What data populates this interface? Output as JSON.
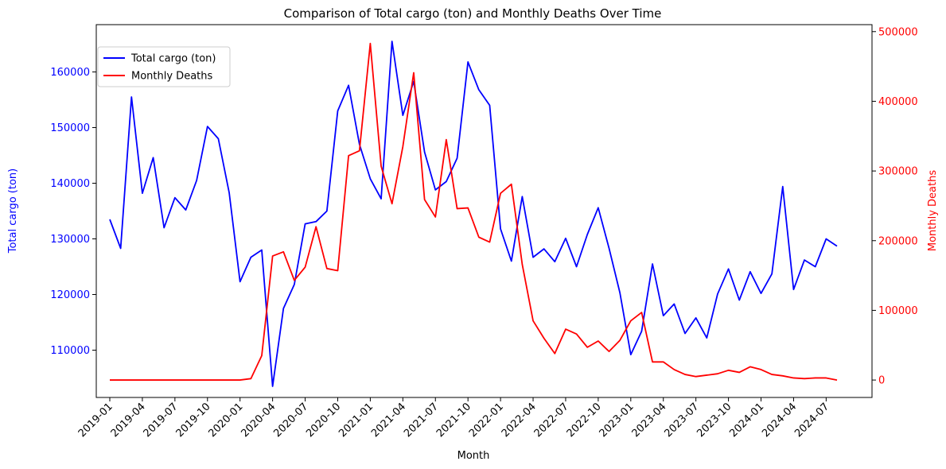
{
  "chart_data": {
    "type": "line",
    "title": "Comparison of Total cargo (ton) and Monthly Deaths Over Time",
    "xlabel": "Month",
    "ylabel_left": "Total cargo (ton)",
    "ylabel_right": "Monthly Deaths",
    "left_axis_color": "#0000ff",
    "right_axis_color": "#ff0000",
    "x_tick_labels": [
      "2019-01",
      "2019-04",
      "2019-07",
      "2019-10",
      "2020-01",
      "2020-04",
      "2020-07",
      "2020-10",
      "2021-01",
      "2021-04",
      "2021-07",
      "2021-10",
      "2022-01",
      "2022-04",
      "2022-07",
      "2022-10",
      "2023-01",
      "2023-04",
      "2023-07",
      "2023-10",
      "2024-01",
      "2024-04",
      "2024-07"
    ],
    "x": [
      "2019-01",
      "2019-02",
      "2019-03",
      "2019-04",
      "2019-05",
      "2019-06",
      "2019-07",
      "2019-08",
      "2019-09",
      "2019-10",
      "2019-11",
      "2019-12",
      "2020-01",
      "2020-02",
      "2020-03",
      "2020-04",
      "2020-05",
      "2020-06",
      "2020-07",
      "2020-08",
      "2020-09",
      "2020-10",
      "2020-11",
      "2020-12",
      "2021-01",
      "2021-02",
      "2021-03",
      "2021-04",
      "2021-05",
      "2021-06",
      "2021-07",
      "2021-08",
      "2021-09",
      "2021-10",
      "2021-11",
      "2021-12",
      "2022-01",
      "2022-02",
      "2022-03",
      "2022-04",
      "2022-05",
      "2022-06",
      "2022-07",
      "2022-08",
      "2022-09",
      "2022-10",
      "2022-11",
      "2022-12",
      "2023-01",
      "2023-02",
      "2023-03",
      "2023-04",
      "2023-05",
      "2023-06",
      "2023-07",
      "2023-08",
      "2023-09",
      "2023-10",
      "2023-11",
      "2023-12",
      "2024-01",
      "2024-02",
      "2024-03",
      "2024-04",
      "2024-05",
      "2024-06",
      "2024-07",
      "2024-08"
    ],
    "y_left_ticks": [
      110000,
      120000,
      130000,
      140000,
      150000,
      160000
    ],
    "y_left_tick_labels": [
      "110000",
      "120000",
      "130000",
      "140000",
      "150000",
      "160000"
    ],
    "y_left_range": [
      101500,
      168500
    ],
    "y_right_ticks": [
      0,
      100000,
      200000,
      300000,
      400000,
      500000
    ],
    "y_right_tick_labels": [
      "0",
      "100000",
      "200000",
      "300000",
      "400000",
      "500000"
    ],
    "y_right_range": [
      -25000,
      510000
    ],
    "legend_position": "upper-left",
    "series": [
      {
        "name": "Total cargo (ton)",
        "axis": "left",
        "color": "#0000ff",
        "values": [
          133500,
          128300,
          155500,
          138200,
          144600,
          132000,
          137400,
          135200,
          140500,
          150200,
          148000,
          138300,
          122300,
          126700,
          128000,
          103500,
          117500,
          121800,
          132700,
          133100,
          135000,
          153000,
          157600,
          147000,
          140800,
          137200,
          165500,
          152200,
          158300,
          145600,
          138800,
          140300,
          144500,
          161800,
          156800,
          154000,
          131800,
          126000,
          137600,
          126700,
          128200,
          125900,
          130100,
          125000,
          130800,
          135600,
          128300,
          120300,
          109200,
          113400,
          125500,
          116200,
          118300,
          113000,
          115800,
          112200,
          120100,
          124600,
          119000,
          124100,
          120200,
          123700,
          139400,
          120900,
          126200,
          125000,
          130000,
          128700
        ]
      },
      {
        "name": "Monthly Deaths",
        "axis": "right",
        "color": "#ff0000",
        "values": [
          0,
          0,
          0,
          0,
          0,
          0,
          0,
          0,
          0,
          0,
          0,
          0,
          0,
          2000,
          35000,
          178000,
          184000,
          143000,
          162000,
          220000,
          160000,
          157000,
          322000,
          329000,
          483000,
          307000,
          253000,
          335000,
          441000,
          259000,
          234000,
          345000,
          246000,
          247000,
          205000,
          198000,
          268000,
          281000,
          166000,
          85000,
          60000,
          38000,
          73000,
          66000,
          47000,
          56000,
          41000,
          57000,
          85000,
          97000,
          26000,
          26000,
          15000,
          8000,
          5000,
          7000,
          9000,
          14000,
          11000,
          19000,
          15000,
          8000,
          6000,
          3000,
          2000,
          3000,
          3000,
          0
        ]
      }
    ],
    "grid": false
  }
}
